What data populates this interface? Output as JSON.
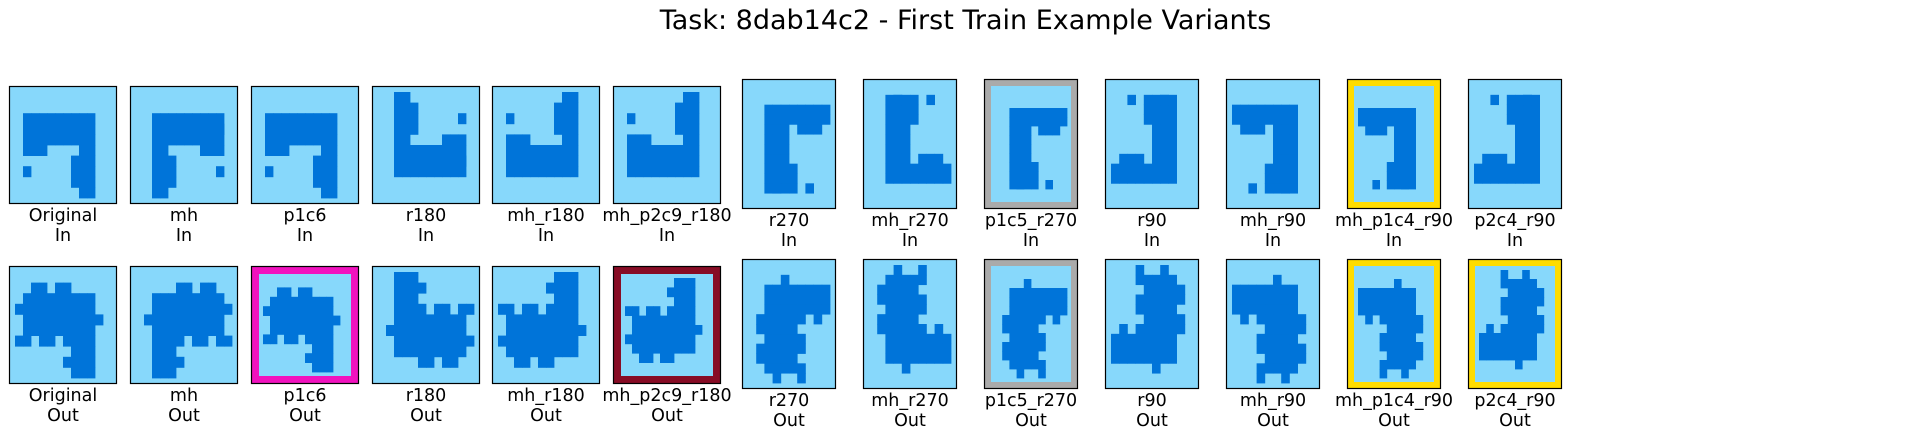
{
  "title": "Task: 8dab14c2 - First Train Example Variants",
  "palette": {
    "bg": "#87D8FB",
    "fg": "#0074D9",
    "frame_border": "#000000"
  },
  "panels": [
    {
      "name": "Original",
      "kind": "In",
      "border": null,
      "shape": "wide"
    },
    {
      "name": "mh",
      "kind": "In",
      "border": null,
      "shape": "wide"
    },
    {
      "name": "p1c6",
      "kind": "In",
      "border": null,
      "shape": "wide"
    },
    {
      "name": "r180",
      "kind": "In",
      "border": null,
      "shape": "wide"
    },
    {
      "name": "mh_r180",
      "kind": "In",
      "border": null,
      "shape": "wide"
    },
    {
      "name": "mh_p2c9_r180",
      "kind": "In",
      "border": null,
      "shape": "wide"
    },
    {
      "name": "r270",
      "kind": "In",
      "border": null,
      "shape": "square"
    },
    {
      "name": "mh_r270",
      "kind": "In",
      "border": null,
      "shape": "square"
    },
    {
      "name": "p1c5_r270",
      "kind": "In",
      "border": "#AAAAAA",
      "shape": "square"
    },
    {
      "name": "r90",
      "kind": "In",
      "border": null,
      "shape": "square"
    },
    {
      "name": "mh_r90",
      "kind": "In",
      "border": null,
      "shape": "square"
    },
    {
      "name": "mh_p1c4_r90",
      "kind": "In",
      "border": "#FFDC00",
      "shape": "square"
    },
    {
      "name": "p2c4_r90",
      "kind": "In",
      "border": null,
      "shape": "square"
    },
    {
      "name": "Original",
      "kind": "Out",
      "border": null,
      "shape": "wide"
    },
    {
      "name": "mh",
      "kind": "Out",
      "border": null,
      "shape": "wide"
    },
    {
      "name": "p1c6",
      "kind": "Out",
      "border": "#F012BE",
      "shape": "wide"
    },
    {
      "name": "r180",
      "kind": "Out",
      "border": null,
      "shape": "wide"
    },
    {
      "name": "mh_r180",
      "kind": "Out",
      "border": null,
      "shape": "wide"
    },
    {
      "name": "mh_p2c9_r180",
      "kind": "Out",
      "border": "#870C25",
      "shape": "wide"
    },
    {
      "name": "r270",
      "kind": "Out",
      "border": null,
      "shape": "square"
    },
    {
      "name": "mh_r270",
      "kind": "Out",
      "border": null,
      "shape": "square"
    },
    {
      "name": "p1c5_r270",
      "kind": "Out",
      "border": "#AAAAAA",
      "shape": "square"
    },
    {
      "name": "r90",
      "kind": "Out",
      "border": null,
      "shape": "square"
    },
    {
      "name": "mh_r90",
      "kind": "Out",
      "border": null,
      "shape": "square"
    },
    {
      "name": "mh_p1c4_r90",
      "kind": "Out",
      "border": "#FFDC00",
      "shape": "square"
    },
    {
      "name": "p2c4_r90",
      "kind": "Out",
      "border": "#FFDC00",
      "shape": "square"
    }
  ]
}
